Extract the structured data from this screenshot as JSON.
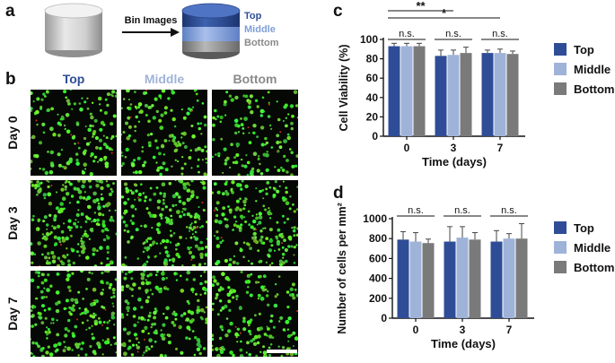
{
  "panel_a": {
    "letter": "a",
    "arrow_label": "Bin Images",
    "bin_labels": [
      "Top",
      "Middle",
      "Bottom"
    ],
    "bin_colors": [
      "#2f4d96",
      "#7f9ed8",
      "#8a8a8a"
    ]
  },
  "panel_b": {
    "letter": "b",
    "columns": [
      "Top",
      "Middle",
      "Bottom"
    ],
    "column_colors": [
      "#2f4d96",
      "#9fb3d8",
      "#8a8a8a"
    ],
    "rows": [
      "Day 0",
      "Day 3",
      "Day 7"
    ],
    "cell_density": [
      [
        0.55,
        0.55,
        0.45
      ],
      [
        1.0,
        0.95,
        0.85
      ],
      [
        0.8,
        0.8,
        0.65
      ]
    ]
  },
  "panel_c": {
    "letter": "c"
  },
  "panel_d": {
    "letter": "d"
  },
  "chart_data": [
    {
      "type": "bar",
      "categories": [
        "0",
        "3",
        "7"
      ],
      "xlabel": "Time (days)",
      "ylabel": "Cell Viability (%)",
      "ylim": [
        0,
        100
      ],
      "yticks": [
        0,
        20,
        40,
        60,
        80,
        100
      ],
      "series": [
        {
          "name": "Top",
          "color": "#2f4d96",
          "values": [
            93,
            83,
            86
          ],
          "errors": [
            3,
            6,
            3
          ]
        },
        {
          "name": "Middle",
          "color": "#9fb3d8",
          "values": [
            93,
            84,
            86
          ],
          "errors": [
            3,
            5,
            4
          ]
        },
        {
          "name": "Bottom",
          "color": "#7a7a7a",
          "values": [
            93,
            86,
            85
          ],
          "errors": [
            3,
            6,
            3
          ]
        }
      ],
      "annotations": [
        {
          "text": "n.s.",
          "group": "0"
        },
        {
          "text": "n.s.",
          "group": "3"
        },
        {
          "text": "n.s.",
          "group": "7"
        },
        {
          "text": "**",
          "from": "0",
          "to": "3"
        },
        {
          "text": "*",
          "from": "0",
          "to": "7"
        }
      ],
      "legend_position": "right"
    },
    {
      "type": "bar",
      "categories": [
        "0",
        "3",
        "7"
      ],
      "xlabel": "Time (days)",
      "ylabel": "Number of cells per mm²",
      "ylim": [
        0,
        1000
      ],
      "yticks": [
        0,
        200,
        400,
        600,
        800,
        1000
      ],
      "series": [
        {
          "name": "Top",
          "color": "#2f4d96",
          "values": [
            790,
            770,
            770
          ],
          "errors": [
            80,
            150,
            110
          ]
        },
        {
          "name": "Middle",
          "color": "#9fb3d8",
          "values": [
            770,
            810,
            800
          ],
          "errors": [
            90,
            110,
            50
          ]
        },
        {
          "name": "Bottom",
          "color": "#7a7a7a",
          "values": [
            755,
            790,
            800
          ],
          "errors": [
            40,
            70,
            150
          ]
        }
      ],
      "annotations": [
        {
          "text": "n.s.",
          "group": "0"
        },
        {
          "text": "n.s.",
          "group": "3"
        },
        {
          "text": "n.s.",
          "group": "7"
        }
      ],
      "legend_position": "right"
    }
  ]
}
